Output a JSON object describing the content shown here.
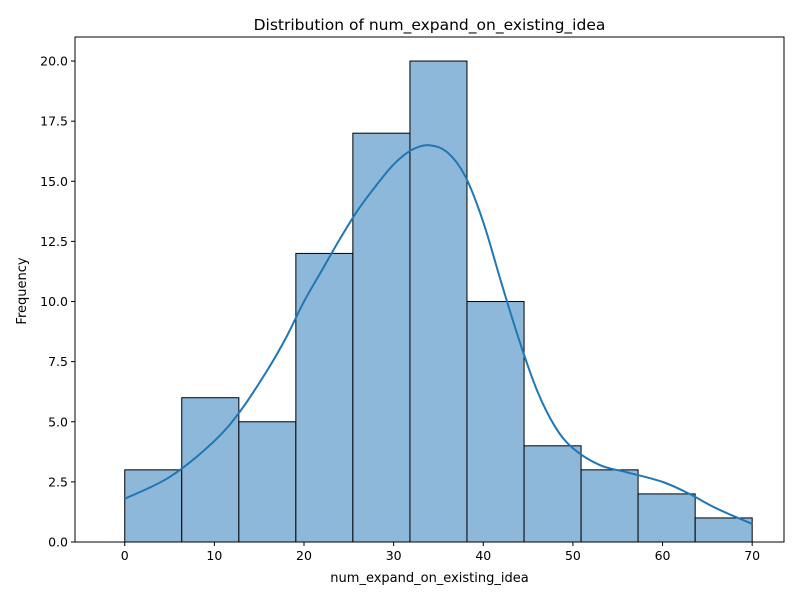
{
  "chart_data": {
    "type": "bar",
    "subtype": "histogram-with-kde",
    "title": "Distribution of num_expand_on_existing_idea",
    "xlabel": "num_expand_on_existing_idea",
    "ylabel": "Frequency",
    "xlim": [
      -5.55,
      73.55
    ],
    "ylim": [
      0,
      21
    ],
    "xticks": [
      0,
      10,
      20,
      30,
      40,
      50,
      60,
      70
    ],
    "xtick_labels": [
      "0",
      "10",
      "20",
      "30",
      "40",
      "50",
      "60",
      "70"
    ],
    "yticks": [
      0,
      2.5,
      5,
      7.5,
      10,
      12.5,
      15,
      17.5,
      20
    ],
    "ytick_labels": [
      "0.0",
      "2.5",
      "5.0",
      "7.5",
      "10.0",
      "12.5",
      "15.0",
      "17.5",
      "20.0"
    ],
    "bin_edges": [
      0,
      6.36,
      12.73,
      19.09,
      25.45,
      31.82,
      38.18,
      44.55,
      50.91,
      57.27,
      63.64,
      70
    ],
    "counts": [
      3,
      6,
      5,
      12,
      17,
      20,
      10,
      4,
      3,
      2,
      1
    ],
    "kde": {
      "x": [
        0,
        5,
        10,
        13,
        16,
        18,
        20,
        22,
        24,
        26,
        28,
        30,
        32,
        34,
        36,
        38,
        40,
        42,
        44,
        46,
        48,
        50,
        53,
        56,
        60,
        63,
        66,
        70
      ],
      "y": [
        1.8,
        2.7,
        4.2,
        5.5,
        7.2,
        8.5,
        10.0,
        11.3,
        12.6,
        13.8,
        14.8,
        15.7,
        16.3,
        16.5,
        16.2,
        15.2,
        13.3,
        10.8,
        8.4,
        6.3,
        4.8,
        3.9,
        3.2,
        2.9,
        2.5,
        2.0,
        1.4,
        0.75
      ]
    },
    "colors": {
      "bar_fill": "#8db8da",
      "bar_edge": "#000000",
      "kde_line": "#1f77b4"
    },
    "grid": false,
    "legend": false
  }
}
